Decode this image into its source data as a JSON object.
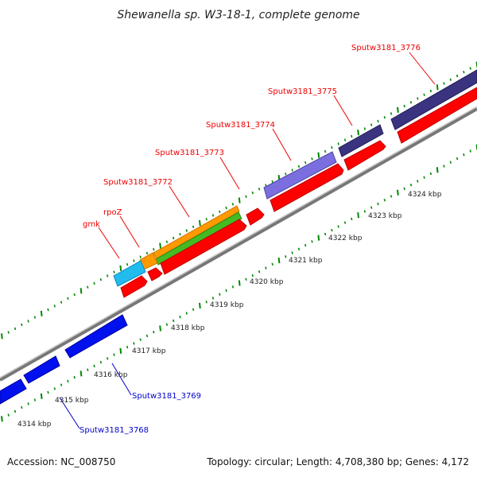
{
  "title": "Shewanella sp. W3-18-1, complete genome",
  "footer": {
    "accession": "Accession: NC_008750",
    "summary": "Topology: circular; Length: 4,708,380 bp; Genes: 4,172"
  },
  "colors": {
    "label_red": "#ee0000",
    "label_blue": "#0000cc",
    "tick_green": "#008800",
    "backbone": "#888888",
    "cds_red": "#ff0000",
    "gene_blue": "#0011ee",
    "gene_darkpurple": "#3a3380",
    "gene_lightpurple": "#7b6fe0",
    "gene_orange": "#ff9900",
    "gene_green": "#44bb22",
    "gene_cyan": "#22bbee"
  },
  "kbp_ticks": [
    "4314 kbp",
    "4315 kbp",
    "4316 kbp",
    "4317 kbp",
    "4318 kbp",
    "4319 kbp",
    "4320 kbp",
    "4321 kbp",
    "4322 kbp",
    "4323 kbp",
    "4324 kbp"
  ],
  "gene_labels_top": [
    "gmk",
    "rpoZ",
    "Sputw3181_3772",
    "Sputw3181_3773",
    "Sputw3181_3774",
    "Sputw3181_3775",
    "Sputw3181_3776"
  ],
  "gene_labels_bottom": [
    "Sputw3181_3769",
    "Sputw3181_3768"
  ]
}
